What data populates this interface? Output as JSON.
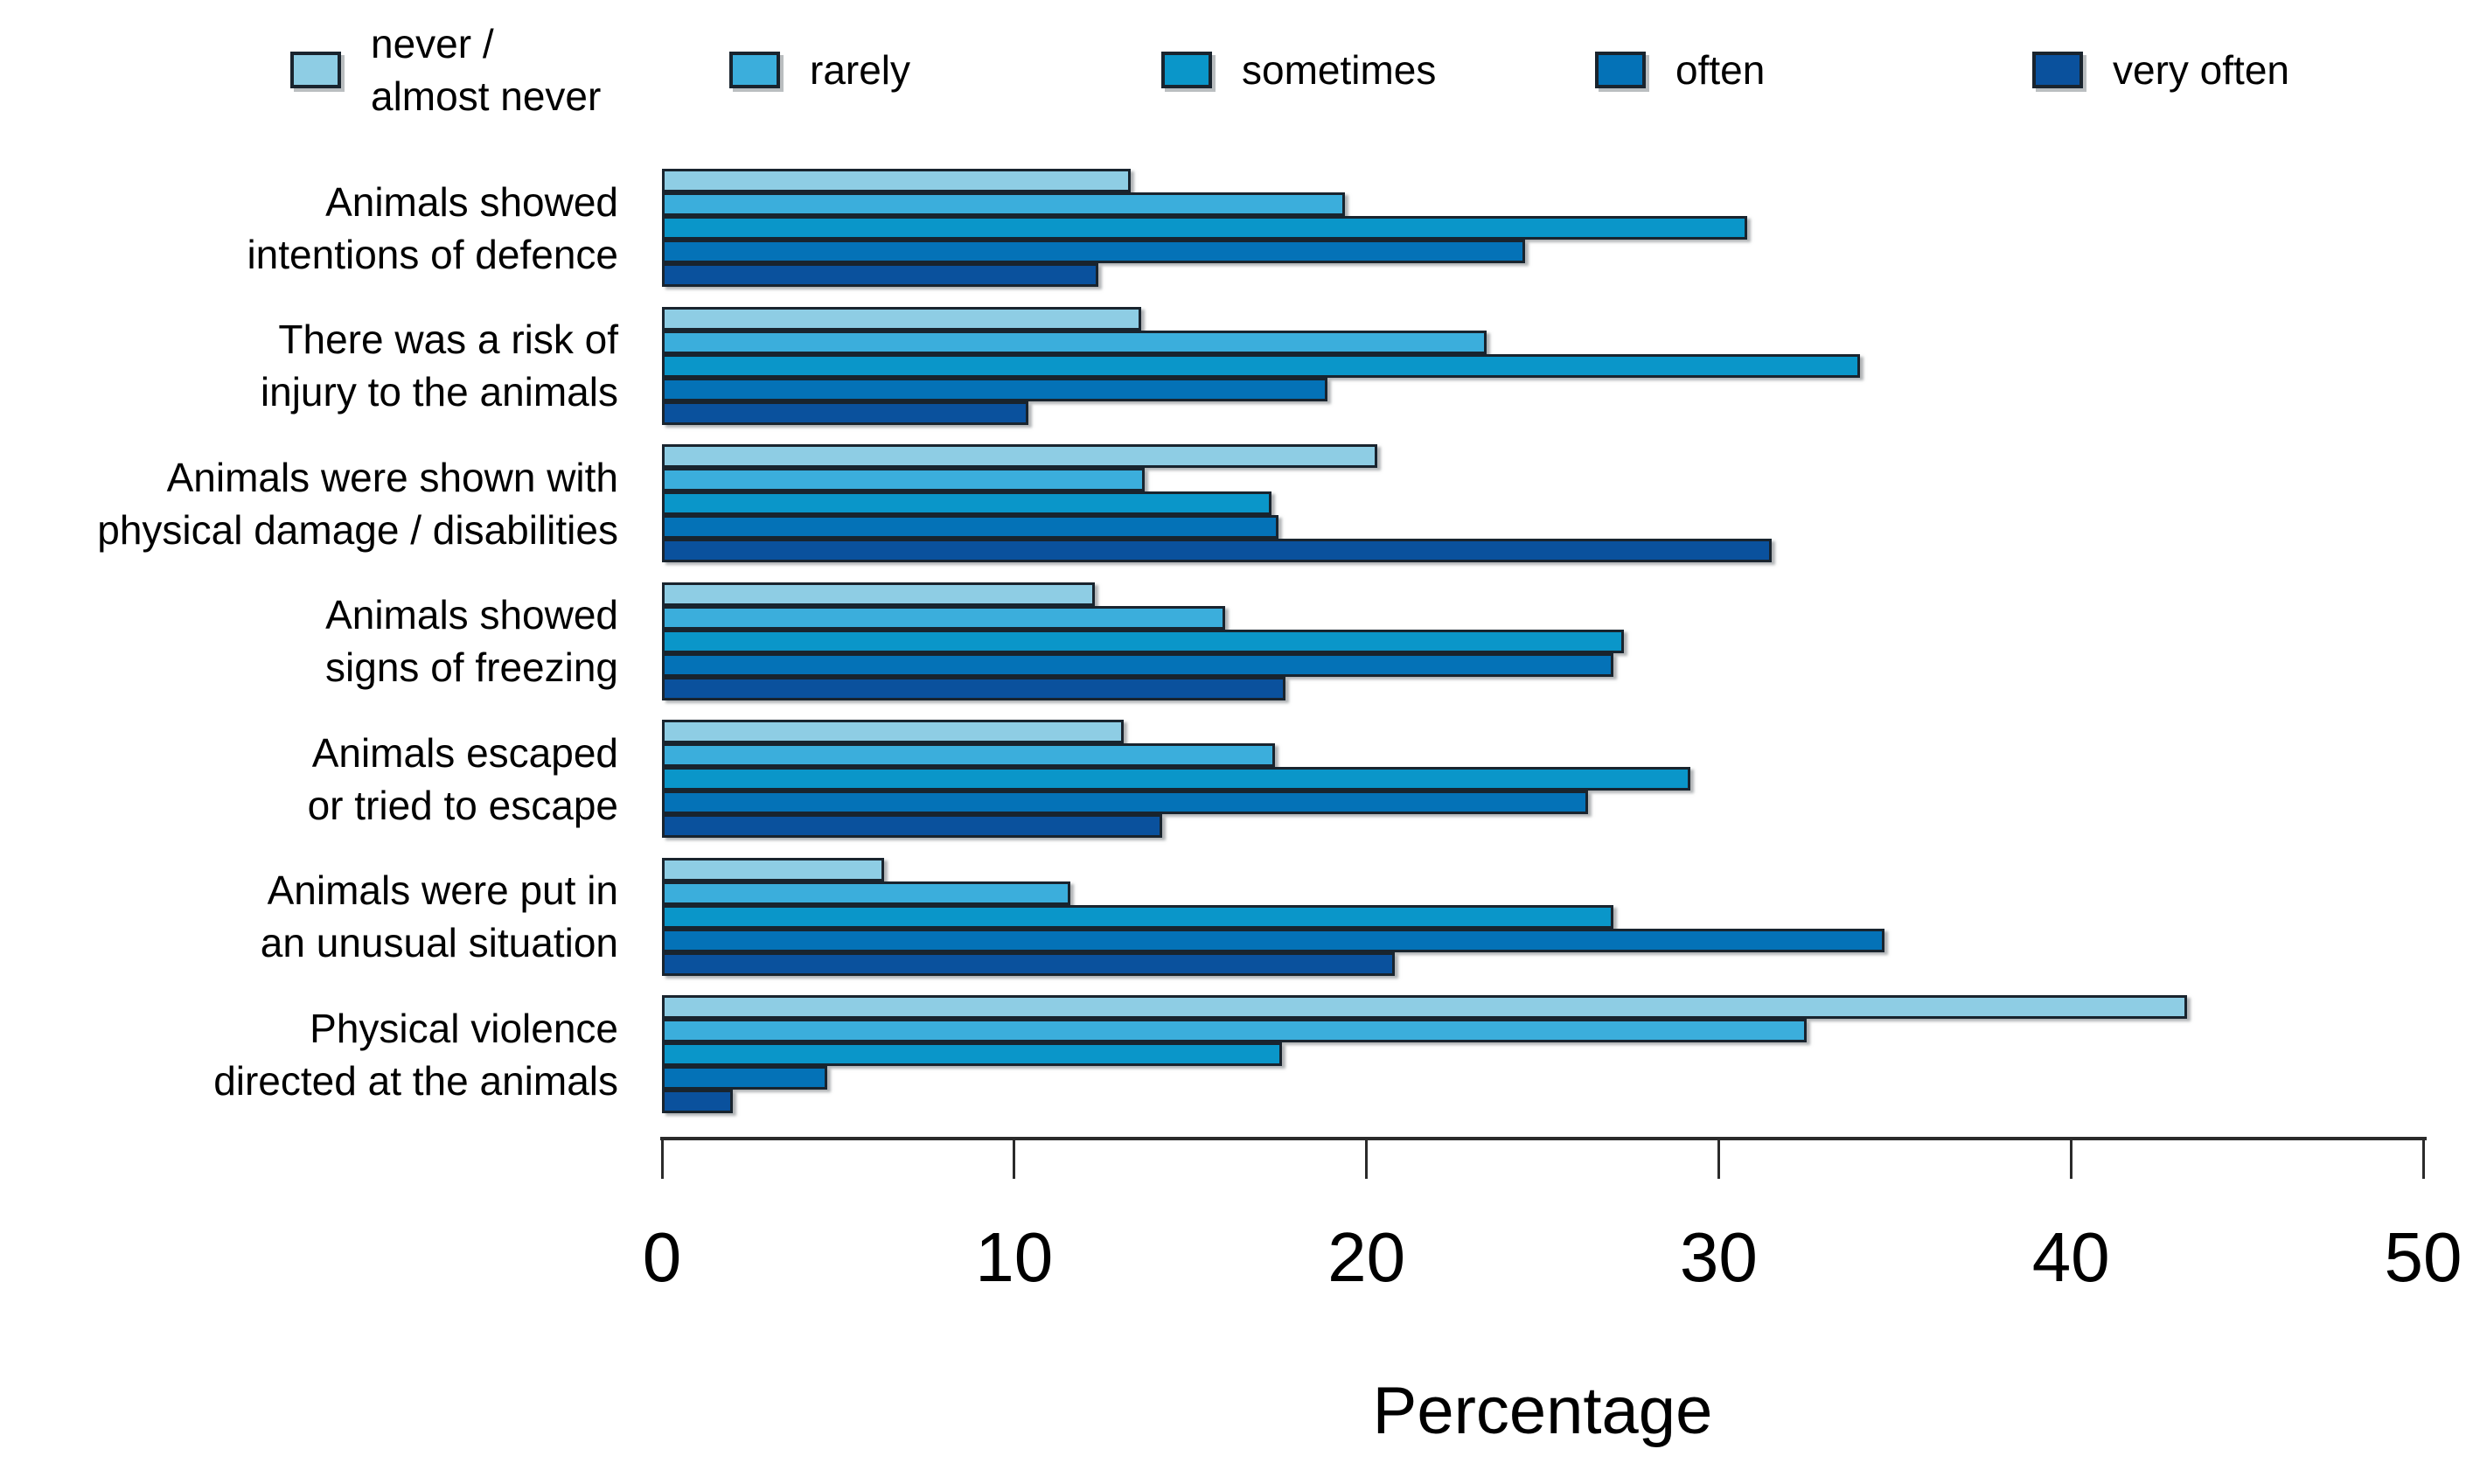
{
  "figure": {
    "xlabel": "Percentage"
  },
  "legend": {
    "position": "top",
    "items": [
      {
        "label": "never /\nalmost never",
        "color": "#8ECDE4"
      },
      {
        "label": "rarely",
        "color": "#3BAEDC"
      },
      {
        "label": "sometimes",
        "color": "#0A96C9"
      },
      {
        "label": "often",
        "color": "#0472B7"
      },
      {
        "label": "very often",
        "color": "#0A519D"
      }
    ]
  },
  "chart_data": {
    "type": "bar",
    "orientation": "horizontal",
    "title": "",
    "xlabel": "Percentage",
    "ylabel": "",
    "xlim": [
      0,
      50
    ],
    "xticks": [
      0,
      10,
      20,
      30,
      40,
      50
    ],
    "grid": false,
    "legend_position": "top",
    "bar_border_color": "#19242e",
    "series_labels": [
      "never / almost never",
      "rarely",
      "sometimes",
      "often",
      "very often"
    ],
    "series_colors": [
      "#8ECDE4",
      "#3BAEDC",
      "#0A96C9",
      "#0472B7",
      "#0A519D"
    ],
    "groups": [
      {
        "category": "Animals showed\nintentions of defence",
        "values": [
          13.3,
          19.4,
          30.8,
          24.5,
          12.4
        ]
      },
      {
        "category": "There was a risk of\ninjury to the animals",
        "values": [
          13.6,
          23.4,
          34.0,
          18.9,
          10.4
        ]
      },
      {
        "category": "Animals were shown with\nphysical damage / disabilities",
        "values": [
          20.3,
          13.7,
          17.3,
          17.5,
          31.5
        ]
      },
      {
        "category": "Animals showed\nsigns of freezing",
        "values": [
          12.3,
          16.0,
          27.3,
          27.0,
          17.7
        ]
      },
      {
        "category": "Animals escaped\nor tried to escape",
        "values": [
          13.1,
          17.4,
          29.2,
          26.3,
          14.2
        ]
      },
      {
        "category": "Animals were put in\nan unusual situation",
        "values": [
          6.3,
          11.6,
          27.0,
          34.7,
          20.8
        ]
      },
      {
        "category": "Physical violence\ndirected at the animals",
        "values": [
          43.3,
          32.5,
          17.6,
          4.7,
          2.0
        ]
      }
    ]
  }
}
